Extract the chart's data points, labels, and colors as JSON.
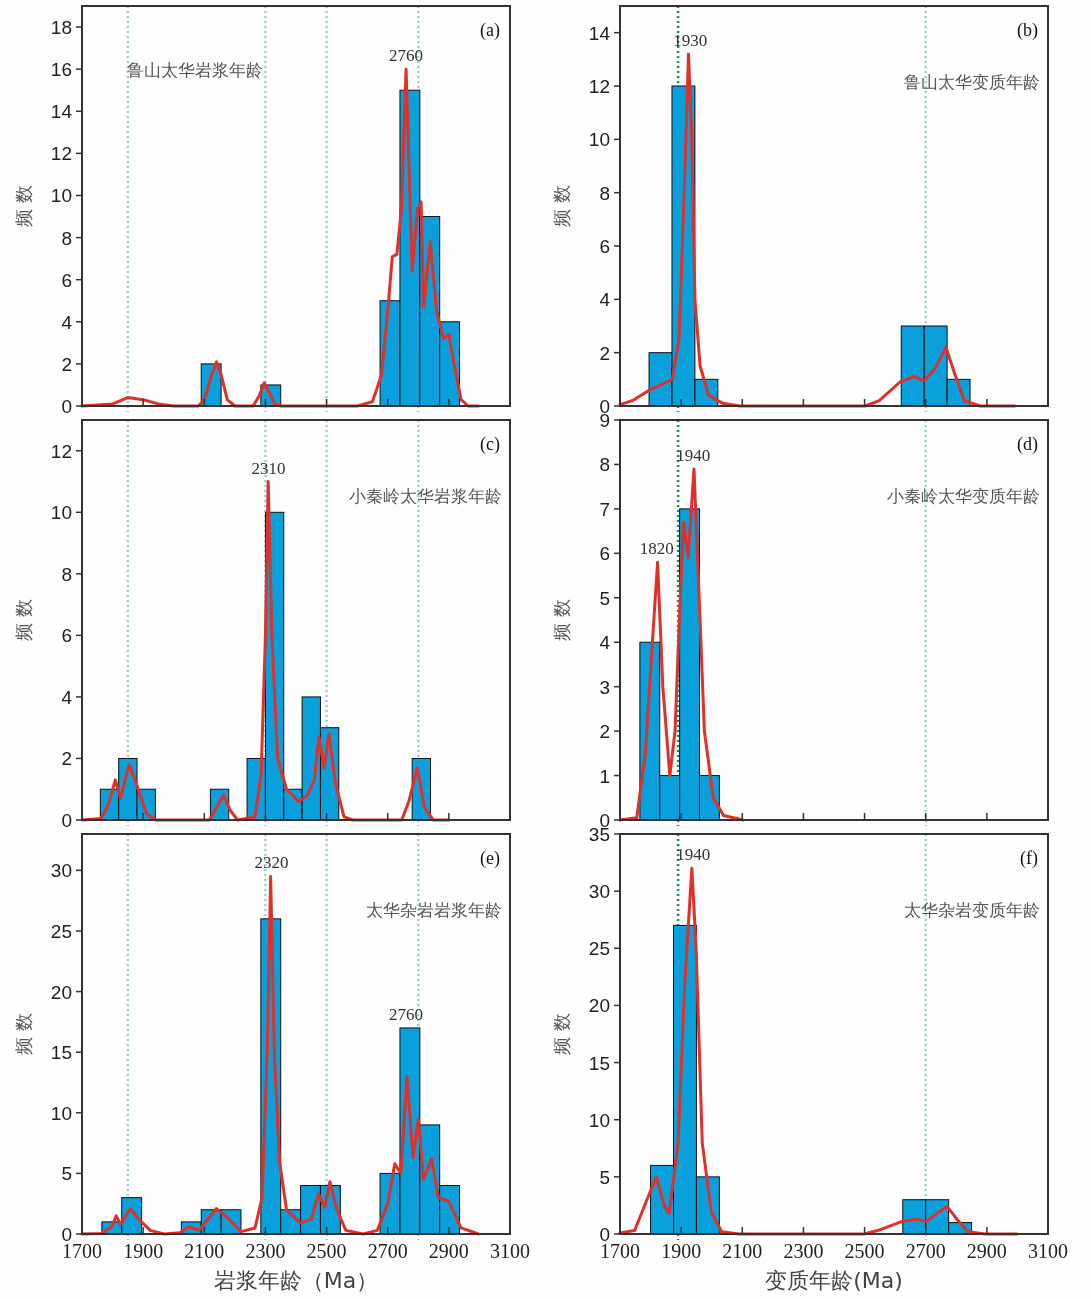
{
  "chart_data": [
    {
      "type": "histogram",
      "title": "鲁山太华岩浆年龄",
      "ylabel": "频 数",
      "annotations": [
        "(a)",
        {
          "text": "2760",
          "x": 2760,
          "y": 16
        }
      ],
      "bins": [
        2090,
        2155,
        2285,
        2350,
        2675,
        2740,
        2805,
        2870,
        2935
      ],
      "values": [
        2,
        0,
        1,
        0,
        5,
        15,
        9,
        4
      ],
      "color": "#0aa0dc",
      "series": [
        {
          "type": "line",
          "color": "#e0302a",
          "x": [
            1700,
            1800,
            1850,
            1900,
            1950,
            2000,
            2080,
            2100,
            2125,
            2140,
            2155,
            2175,
            2200,
            2260,
            2280,
            2296,
            2310,
            2330,
            2350,
            2600,
            2650,
            2680,
            2700,
            2715,
            2730,
            2745,
            2760,
            2780,
            2797,
            2809,
            2818,
            2839,
            2860,
            2883,
            2900,
            2917,
            2940,
            2963,
            2997
          ],
          "values": [
            0,
            0.1,
            0.4,
            0.3,
            0.1,
            0,
            0,
            0.3,
            1.5,
            2.1,
            1.5,
            0.3,
            0,
            0,
            0.5,
            1.1,
            0.7,
            0.1,
            0,
            0,
            0.2,
            1.5,
            4.5,
            7.1,
            7.2,
            9.4,
            16,
            6.4,
            9.3,
            9.7,
            4.7,
            7.8,
            4.5,
            3.2,
            3.4,
            2,
            0.3,
            0,
            0
          ]
        }
      ],
      "xlim": [
        1700,
        3100
      ],
      "xticks": [
        1700,
        1900,
        2100,
        2300,
        2500,
        2700,
        2900,
        3100
      ],
      "ylim": [
        0,
        19
      ],
      "yticks": [
        0,
        2,
        4,
        6,
        8,
        10,
        12,
        14,
        16,
        18
      ],
      "tick_labels": "y",
      "ref_lines": [
        {
          "axis": "x",
          "value": 1850,
          "color": "#9ccfd0",
          "line_style": "dotted"
        },
        {
          "axis": "x",
          "value": 2300,
          "color": "#9ccfd0",
          "line_style": "dotted"
        },
        {
          "axis": "x",
          "value": 2500,
          "color": "#9ccfd0",
          "line_style": "dotted"
        },
        {
          "axis": "x",
          "value": 2800,
          "color": "#9ccfd0",
          "line_style": "dotted"
        }
      ]
    },
    {
      "type": "histogram",
      "title": "鲁山太华变质年龄",
      "ylabel": "频 数",
      "annotations": [
        "(b)",
        {
          "text": "1930",
          "x": 1930,
          "y": 13.2
        }
      ],
      "bins": [
        1795,
        1870,
        1945,
        2020,
        2620,
        2695,
        2770,
        2845
      ],
      "values": [
        2,
        12,
        1,
        0,
        3,
        3,
        1
      ],
      "color": "#0aa0dc",
      "series": [
        {
          "type": "line",
          "color": "#e0302a",
          "x": [
            1700,
            1740,
            1797,
            1871,
            1893,
            1910,
            1924,
            1935,
            1945,
            1962,
            1990,
            2036,
            2092,
            2502,
            2548,
            2616,
            2661,
            2695,
            2730,
            2766,
            2792,
            2826,
            2878,
            2991
          ],
          "values": [
            0.05,
            0.2,
            0.6,
            1.0,
            2.5,
            8,
            13.2,
            10,
            4,
            1.5,
            0.4,
            0.1,
            0,
            0,
            0.2,
            0.9,
            1.1,
            0.95,
            1.4,
            2.2,
            1.3,
            0.2,
            0,
            0
          ]
        }
      ],
      "xlim": [
        1700,
        3100
      ],
      "xticks": [
        1700,
        1900,
        2100,
        2300,
        2500,
        2700,
        2900,
        3100
      ],
      "ylim": [
        0,
        15
      ],
      "yticks": [
        0,
        2,
        4,
        6,
        8,
        10,
        12,
        14
      ],
      "tick_labels": "y",
      "ref_lines": [
        {
          "axis": "x",
          "value": 1890,
          "color": "#1a8f5a",
          "line_style": "dotted"
        },
        {
          "axis": "x",
          "value": 2700,
          "color": "#9ccfd0",
          "line_style": "dotted"
        }
      ]
    },
    {
      "type": "histogram",
      "title": "小秦岭太华岩浆年龄",
      "ylabel": "频 数",
      "annotations": [
        "(c)",
        {
          "text": "2310",
          "x": 2310,
          "y": 11
        }
      ],
      "bins": [
        1760,
        1820,
        1880,
        1940,
        2120,
        2180,
        2240,
        2300,
        2360,
        2420,
        2480,
        2540,
        2780,
        2840
      ],
      "values": [
        1,
        2,
        1,
        0,
        1,
        0,
        2,
        10,
        1,
        4,
        3,
        0,
        2
      ],
      "color": "#0aa0dc",
      "series": [
        {
          "type": "line",
          "color": "#e0302a",
          "x": [
            1700,
            1763,
            1786,
            1809,
            1826,
            1854,
            1877,
            1911,
            1940,
            2117,
            2140,
            2163,
            2186,
            2209,
            2266,
            2286,
            2300,
            2309,
            2321,
            2340,
            2369,
            2409,
            2437,
            2460,
            2475,
            2492,
            2508,
            2529,
            2557,
            2586,
            2746,
            2769,
            2797,
            2820,
            2849,
            2900
          ],
          "values": [
            0,
            0.05,
            0.5,
            1.3,
            0.7,
            1.8,
            1.2,
            0.2,
            0,
            0,
            0.4,
            0.8,
            0.3,
            0,
            0.1,
            1.5,
            6,
            11,
            6,
            2,
            1.0,
            0.6,
            0.8,
            1.3,
            2.7,
            1.7,
            2.8,
            1.2,
            0.1,
            0,
            0,
            0.6,
            1.7,
            0.4,
            0,
            0
          ]
        }
      ],
      "xlim": [
        1700,
        3100
      ],
      "xticks": [
        1700,
        1900,
        2100,
        2300,
        2500,
        2700,
        2900,
        3100
      ],
      "ylim": [
        0,
        13
      ],
      "yticks": [
        0,
        2,
        4,
        6,
        8,
        10,
        12
      ],
      "tick_labels": "y",
      "ref_lines": [
        {
          "axis": "x",
          "value": 1850,
          "color": "#9ccfd0",
          "line_style": "dotted"
        },
        {
          "axis": "x",
          "value": 2300,
          "color": "#9ccfd0",
          "line_style": "dotted"
        },
        {
          "axis": "x",
          "value": 2500,
          "color": "#9ccfd0",
          "line_style": "dotted"
        },
        {
          "axis": "x",
          "value": 2800,
          "color": "#9ccfd0",
          "line_style": "dotted"
        }
      ]
    },
    {
      "type": "histogram",
      "title": "小秦岭太华变质年龄",
      "ylabel": "频 数",
      "annotations": [
        "(d)",
        {
          "text": "1940",
          "x": 1940,
          "y": 7.9
        },
        {
          "text": "1820",
          "x": 1820,
          "y": 5.8
        }
      ],
      "bins": [
        1765,
        1830,
        1895,
        1960,
        2025
      ],
      "values": [
        4,
        1,
        7,
        1
      ],
      "color": "#0aa0dc",
      "series": [
        {
          "type": "line",
          "color": "#e0302a",
          "x": [
            1700,
            1755,
            1783,
            1806,
            1823,
            1840,
            1863,
            1880,
            1897,
            1908,
            1923,
            1942,
            1959,
            1976,
            2005,
            2039,
            2102
          ],
          "values": [
            0,
            0.05,
            1.5,
            4,
            5.8,
            3,
            1,
            2,
            5,
            6.7,
            5.9,
            7.9,
            5,
            2,
            0.5,
            0.1,
            0
          ]
        }
      ],
      "xlim": [
        1700,
        3100
      ],
      "xticks": [
        1700,
        1900,
        2100,
        2300,
        2500,
        2700,
        2900,
        3100
      ],
      "ylim": [
        0,
        9
      ],
      "yticks": [
        0,
        1,
        2,
        3,
        4,
        5,
        6,
        7,
        8,
        9
      ],
      "tick_labels": "y",
      "ref_lines": [
        {
          "axis": "x",
          "value": 1890,
          "color": "#1a8f5a",
          "line_style": "dotted"
        },
        {
          "axis": "x",
          "value": 2700,
          "color": "#9ccfd0",
          "line_style": "dotted"
        }
      ]
    },
    {
      "type": "histogram",
      "title": "太华杂岩岩浆年龄",
      "ylabel": "频 数",
      "xlabel": "岩浆年龄（Ma）",
      "annotations": [
        "(e)",
        {
          "text": "2320",
          "x": 2320,
          "y": 29.5
        },
        {
          "text": "2760",
          "x": 2760,
          "y": 17
        }
      ],
      "bins": [
        1765,
        1830,
        1895,
        2025,
        2090,
        2155,
        2220,
        2285,
        2350,
        2415,
        2480,
        2545,
        2675,
        2740,
        2805,
        2870,
        2935
      ],
      "values": [
        1,
        3,
        0,
        1,
        2,
        2,
        0,
        26,
        2,
        4,
        4,
        0,
        5,
        17,
        9,
        4
      ],
      "color": "#0aa0dc",
      "series": [
        {
          "type": "line",
          "color": "#e0302a",
          "x": [
            1700,
            1763,
            1797,
            1812,
            1826,
            1858,
            1883,
            1923,
            1969,
            2020,
            2049,
            2083,
            2111,
            2140,
            2169,
            2220,
            2266,
            2289,
            2306,
            2317,
            2329,
            2346,
            2369,
            2414,
            2449,
            2474,
            2494,
            2511,
            2534,
            2563,
            2620,
            2666,
            2700,
            2723,
            2743,
            2763,
            2783,
            2800,
            2817,
            2843,
            2866,
            2900,
            2940,
            2997
          ],
          "values": [
            0,
            0.05,
            0.6,
            1.5,
            0.8,
            2.1,
            1.3,
            0.3,
            0,
            0.1,
            0.6,
            0.3,
            1.2,
            2.1,
            1.5,
            0.2,
            0.5,
            3,
            15,
            29.5,
            15,
            6,
            2,
            0.9,
            1.2,
            3.3,
            2.2,
            4.3,
            2,
            0.3,
            0,
            0.3,
            2.5,
            5.8,
            5.0,
            13,
            6.3,
            9.5,
            4.5,
            6.2,
            3,
            2.7,
            0.5,
            0
          ]
        }
      ],
      "xlim": [
        1700,
        3100
      ],
      "xticks": [
        1700,
        1900,
        2100,
        2300,
        2500,
        2700,
        2900,
        3100
      ],
      "ylim": [
        0,
        33
      ],
      "yticks": [
        0,
        5,
        10,
        15,
        20,
        25,
        30
      ],
      "ref_lines": [
        {
          "axis": "x",
          "value": 1850,
          "color": "#9ccfd0",
          "line_style": "dotted"
        },
        {
          "axis": "x",
          "value": 2300,
          "color": "#9ccfd0",
          "line_style": "dotted"
        },
        {
          "axis": "x",
          "value": 2500,
          "color": "#9ccfd0",
          "line_style": "dotted"
        },
        {
          "axis": "x",
          "value": 2800,
          "color": "#9ccfd0",
          "line_style": "dotted"
        }
      ]
    },
    {
      "type": "histogram",
      "title": "太华杂岩变质年龄",
      "ylabel": "频 数",
      "xlabel": "变质年龄(Ma)",
      "annotations": [
        "(f)",
        {
          "text": "1940",
          "x": 1940,
          "y": 32
        }
      ],
      "bins": [
        1800,
        1875,
        1950,
        2025,
        2625,
        2700,
        2775,
        2850
      ],
      "values": [
        6,
        27,
        5,
        0,
        3,
        3,
        1
      ],
      "color": "#0aa0dc",
      "series": [
        {
          "type": "line",
          "color": "#e0302a",
          "x": [
            1700,
            1748,
            1788,
            1819,
            1844,
            1861,
            1890,
            1912,
            1935,
            1949,
            1969,
            1998,
            2032,
            2089,
            2498,
            2543,
            2623,
            2668,
            2702,
            2736,
            2770,
            2805,
            2839,
            2895,
            2998
          ],
          "values": [
            0.1,
            0.3,
            3,
            5,
            2.5,
            1.8,
            8,
            22,
            32,
            25,
            8,
            2,
            0.2,
            0,
            0,
            0.3,
            1.1,
            1.3,
            1.1,
            1.8,
            2.4,
            1.2,
            0.2,
            0,
            0
          ]
        }
      ],
      "xlim": [
        1700,
        3100
      ],
      "xticks": [
        1700,
        1900,
        2100,
        2300,
        2500,
        2700,
        2900,
        3100
      ],
      "ylim": [
        0,
        35
      ],
      "yticks": [
        0,
        5,
        10,
        15,
        20,
        25,
        30,
        35
      ],
      "ref_lines": [
        {
          "axis": "x",
          "value": 1890,
          "color": "#1a8f5a",
          "line_style": "dotted"
        },
        {
          "axis": "x",
          "value": 2700,
          "color": "#9ccfd0",
          "line_style": "dotted"
        }
      ]
    }
  ]
}
